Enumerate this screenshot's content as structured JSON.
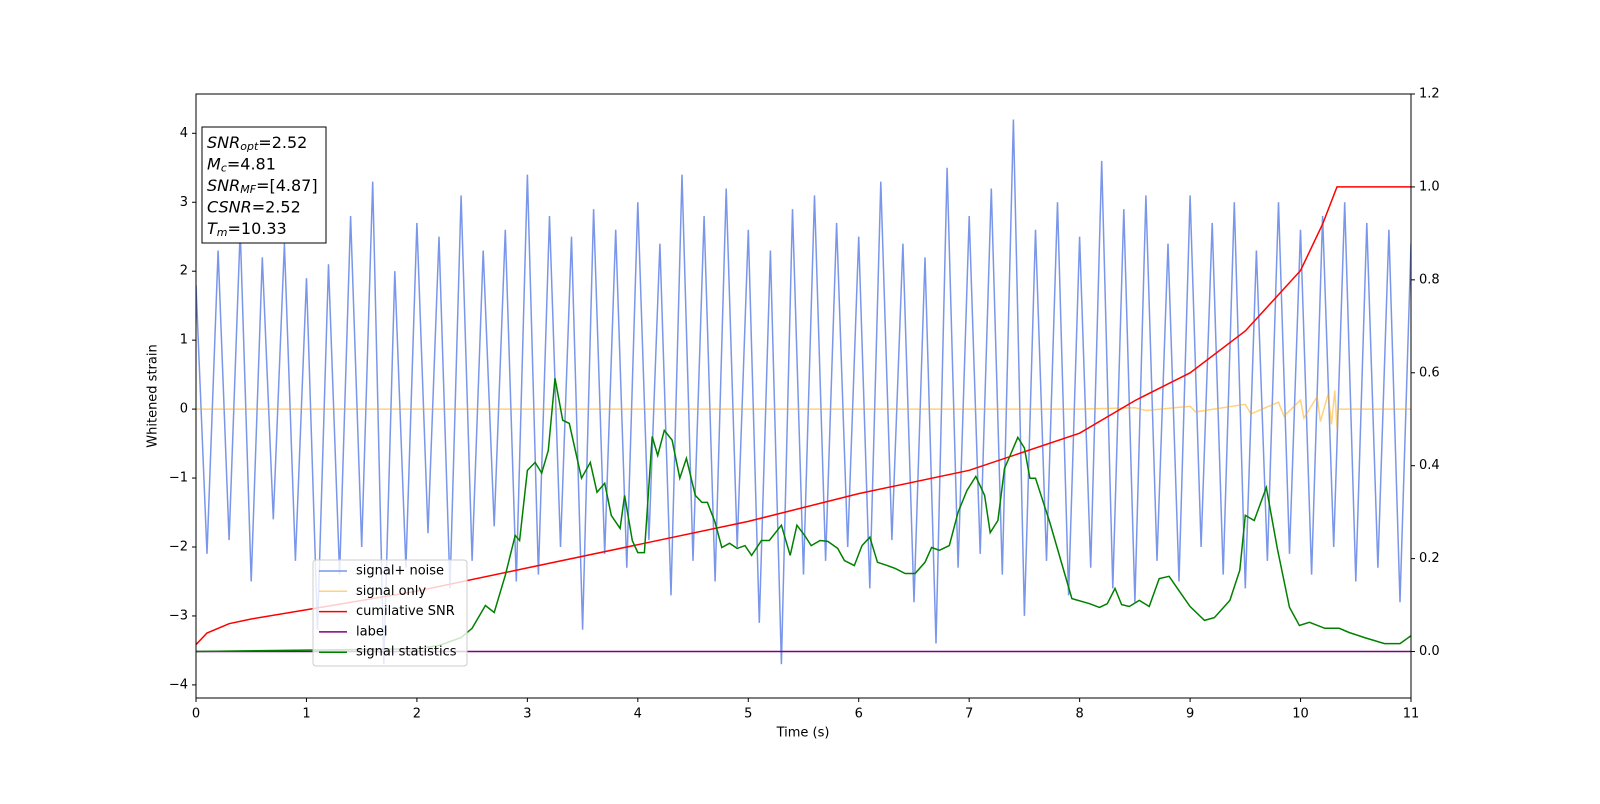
{
  "chart_data": {
    "type": "line",
    "xlabel": "Time (s)",
    "ylabel": "Whitened strain",
    "xlim": [
      0,
      11
    ],
    "xticks": [
      0,
      1,
      2,
      3,
      4,
      5,
      6,
      7,
      8,
      9,
      10,
      11
    ],
    "ylim": [
      -4.19,
      4.57
    ],
    "yticks": [
      {
        "value": -4,
        "label": "−4"
      },
      {
        "value": -3,
        "label": "−3"
      },
      {
        "value": -2,
        "label": "−2"
      },
      {
        "value": -1,
        "label": "−1"
      },
      0,
      1,
      2,
      3,
      4
    ],
    "y2lim": [
      -0.1,
      1.2
    ],
    "y2ticks": [
      {
        "value": 0,
        "label": "0.0"
      },
      0.2,
      0.4,
      0.6,
      0.8,
      {
        "value": 1,
        "label": "1.0"
      },
      1.2
    ],
    "annotations": [
      {
        "symbol": "SNR",
        "sub": "opt",
        "text": "=2.52"
      },
      {
        "symbol": "M",
        "sub": "c",
        "text": "=4.81"
      },
      {
        "symbol": "SNR",
        "sub": "MF",
        "text": "=[4.87]"
      },
      {
        "symbol": "CSNR",
        "text": "=2.52"
      },
      {
        "symbol": "T",
        "sub": "m",
        "text": "=10.33"
      }
    ],
    "series": [
      {
        "name": "signal+ noise",
        "color": "#4169e1",
        "alpha": 0.7,
        "axis": "y",
        "x": [
          0,
          0.1,
          0.2,
          0.3,
          0.4,
          0.5,
          0.6,
          0.7,
          0.8,
          0.9,
          1,
          1.1,
          1.2,
          1.3,
          1.4,
          1.5,
          1.6,
          1.7,
          1.8,
          1.9,
          2,
          2.1,
          2.2,
          2.3,
          2.4,
          2.5,
          2.6,
          2.7,
          2.8,
          2.9,
          3,
          3.1,
          3.2,
          3.3,
          3.4,
          3.5,
          3.6,
          3.7,
          3.8,
          3.9,
          4,
          4.1,
          4.2,
          4.3,
          4.4,
          4.5,
          4.6,
          4.7,
          4.8,
          4.9,
          5,
          5.1,
          5.2,
          5.3,
          5.4,
          5.5,
          5.6,
          5.7,
          5.8,
          5.9,
          6,
          6.1,
          6.2,
          6.3,
          6.4,
          6.5,
          6.6,
          6.7,
          6.8,
          6.9,
          7,
          7.1,
          7.2,
          7.3,
          7.4,
          7.5,
          7.6,
          7.7,
          7.8,
          7.9,
          8,
          8.1,
          8.2,
          8.3,
          8.4,
          8.5,
          8.6,
          8.7,
          8.8,
          8.9,
          9,
          9.1,
          9.2,
          9.3,
          9.4,
          9.5,
          9.6,
          9.7,
          9.8,
          9.9,
          10,
          10.1,
          10.2,
          10.3,
          10.4,
          10.5,
          10.6,
          10.7,
          10.8,
          10.9,
          11
        ],
        "values": [
          1.8,
          -2.1,
          2.3,
          -1.9,
          2.6,
          -2.5,
          2.2,
          -1.6,
          2.4,
          -2.2,
          1.9,
          -3.2,
          2.1,
          -2.4,
          2.8,
          -2.0,
          3.3,
          -3.7,
          2.0,
          -2.3,
          2.7,
          -1.8,
          2.5,
          -2.6,
          3.1,
          -2.2,
          2.3,
          -1.7,
          2.6,
          -2.5,
          3.4,
          -2.4,
          2.8,
          -2.0,
          2.5,
          -3.2,
          2.9,
          -2.1,
          2.6,
          -2.3,
          3.0,
          -1.9,
          2.4,
          -2.7,
          3.4,
          -2.2,
          2.8,
          -2.5,
          3.2,
          -2.0,
          2.6,
          -3.1,
          2.3,
          -3.7,
          2.9,
          -2.4,
          3.1,
          -2.2,
          2.7,
          -2.0,
          2.5,
          -2.6,
          3.3,
          -1.9,
          2.4,
          -2.8,
          2.2,
          -3.4,
          3.5,
          -2.3,
          2.8,
          -2.1,
          3.2,
          -2.4,
          4.2,
          -3.0,
          2.6,
          -2.2,
          3.0,
          -2.7,
          2.5,
          -2.3,
          3.6,
          -2.6,
          2.9,
          -2.8,
          3.1,
          -2.2,
          2.4,
          -2.5,
          3.1,
          -2.0,
          2.7,
          -2.4,
          3.0,
          -2.6,
          2.3,
          -2.2,
          3.0,
          -2.1,
          2.6,
          -2.4,
          2.8,
          -2.0,
          3.0,
          -2.5,
          2.7,
          -2.3,
          2.6,
          -2.8,
          2.4
        ]
      },
      {
        "name": "signal only",
        "color": "#ffa500",
        "alpha": 0.5,
        "axis": "y",
        "x": [
          0,
          8,
          8.5,
          8.6,
          9,
          9.05,
          9.5,
          9.55,
          9.8,
          9.85,
          10.0,
          10.03,
          10.15,
          10.18,
          10.25,
          10.28,
          10.31,
          10.33,
          10.34,
          11
        ],
        "values": [
          0,
          0,
          0.02,
          -0.02,
          0.04,
          -0.04,
          0.07,
          -0.07,
          0.1,
          -0.1,
          0.13,
          -0.13,
          0.18,
          -0.18,
          0.22,
          -0.22,
          0.27,
          -0.28,
          0,
          0
        ]
      },
      {
        "name": "cumilative SNR",
        "color": "#ff0000",
        "alpha": 1,
        "axis": "y2",
        "x": [
          0,
          0.1,
          0.3,
          0.5,
          1,
          2,
          3,
          4,
          5,
          6,
          7,
          8,
          8.5,
          9,
          9.5,
          10,
          10.2,
          10.33,
          11
        ],
        "values": [
          0.015,
          0.04,
          0.06,
          0.07,
          0.09,
          0.13,
          0.18,
          0.23,
          0.28,
          0.34,
          0.39,
          0.47,
          0.54,
          0.6,
          0.69,
          0.82,
          0.92,
          1.0,
          1.0
        ]
      },
      {
        "name": "label",
        "color": "#800080",
        "alpha": 1,
        "axis": "y2",
        "x": [
          0,
          11
        ],
        "values": [
          0,
          0
        ]
      },
      {
        "name": "signal statistics",
        "color": "#008000",
        "alpha": 1,
        "axis": "y2",
        "x": [
          0,
          1,
          2,
          2.2,
          2.4,
          2.5,
          2.62,
          2.7,
          2.8,
          2.89,
          2.93,
          3.0,
          3.07,
          3.13,
          3.19,
          3.25,
          3.32,
          3.38,
          3.49,
          3.57,
          3.63,
          3.7,
          3.76,
          3.84,
          3.88,
          3.95,
          4.0,
          4.06,
          4.13,
          4.18,
          4.24,
          4.31,
          4.38,
          4.44,
          4.52,
          4.58,
          4.63,
          4.7,
          4.76,
          4.83,
          4.9,
          4.97,
          5.03,
          5.12,
          5.19,
          5.3,
          5.38,
          5.44,
          5.51,
          5.57,
          5.65,
          5.72,
          5.81,
          5.87,
          5.96,
          6.03,
          6.1,
          6.17,
          6.26,
          6.33,
          6.42,
          6.51,
          6.6,
          6.66,
          6.73,
          6.82,
          6.9,
          6.98,
          7.06,
          7.14,
          7.19,
          7.26,
          7.32,
          7.37,
          7.44,
          7.5,
          7.55,
          7.6,
          7.73,
          7.93,
          8.09,
          8.18,
          8.25,
          8.32,
          8.38,
          8.45,
          8.54,
          8.63,
          8.72,
          8.81,
          8.9,
          9.0,
          9.13,
          9.22,
          9.36,
          9.45,
          9.5,
          9.58,
          9.69,
          9.79,
          9.9,
          9.99,
          10.08,
          10.22,
          10.35,
          10.44,
          10.58,
          10.76,
          10.9,
          11.0
        ],
        "values": [
          0,
          0.003,
          0.006,
          0.013,
          0.03,
          0.05,
          0.099,
          0.084,
          0.164,
          0.25,
          0.239,
          0.39,
          0.407,
          0.384,
          0.433,
          0.588,
          0.498,
          0.491,
          0.373,
          0.407,
          0.343,
          0.362,
          0.293,
          0.265,
          0.336,
          0.239,
          0.213,
          0.213,
          0.463,
          0.422,
          0.476,
          0.455,
          0.373,
          0.416,
          0.336,
          0.321,
          0.321,
          0.278,
          0.224,
          0.233,
          0.222,
          0.228,
          0.207,
          0.239,
          0.239,
          0.272,
          0.207,
          0.272,
          0.25,
          0.228,
          0.239,
          0.237,
          0.222,
          0.196,
          0.185,
          0.228,
          0.246,
          0.192,
          0.185,
          0.179,
          0.168,
          0.168,
          0.192,
          0.224,
          0.218,
          0.228,
          0.3,
          0.347,
          0.377,
          0.336,
          0.256,
          0.282,
          0.394,
          0.422,
          0.461,
          0.438,
          0.373,
          0.373,
          0.278,
          0.114,
          0.103,
          0.095,
          0.103,
          0.136,
          0.101,
          0.097,
          0.11,
          0.097,
          0.157,
          0.162,
          0.131,
          0.097,
          0.067,
          0.073,
          0.11,
          0.175,
          0.293,
          0.282,
          0.353,
          0.222,
          0.095,
          0.056,
          0.063,
          0.05,
          0.05,
          0.041,
          0.03,
          0.017,
          0.017,
          0.034
        ]
      }
    ]
  }
}
